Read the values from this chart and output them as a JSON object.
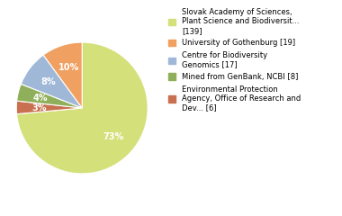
{
  "values": [
    139,
    6,
    8,
    17,
    19
  ],
  "colors": [
    "#d4e07a",
    "#c97050",
    "#8faf5a",
    "#a0b8d8",
    "#f0a060"
  ],
  "pct_labels": [
    "73%",
    "3%",
    "4%",
    "8%",
    "10%"
  ],
  "show_pct": [
    true,
    true,
    true,
    true,
    true
  ],
  "legend_labels": [
    "Slovak Academy of Sciences,\nPlant Science and Biodiversit...\n[139]",
    "University of Gothenburg [19]",
    "Centre for Biodiversity\nGenomics [17]",
    "Mined from GenBank, NCBI [8]",
    "Environmental Protection\nAgency, Office of Research and\nDev... [6]"
  ],
  "legend_colors": [
    "#d4e07a",
    "#f0a060",
    "#a0b8d8",
    "#8faf5a",
    "#c97050"
  ],
  "background_color": "#ffffff",
  "startangle": 90,
  "pct_fontsize": 7,
  "legend_fontsize": 6
}
